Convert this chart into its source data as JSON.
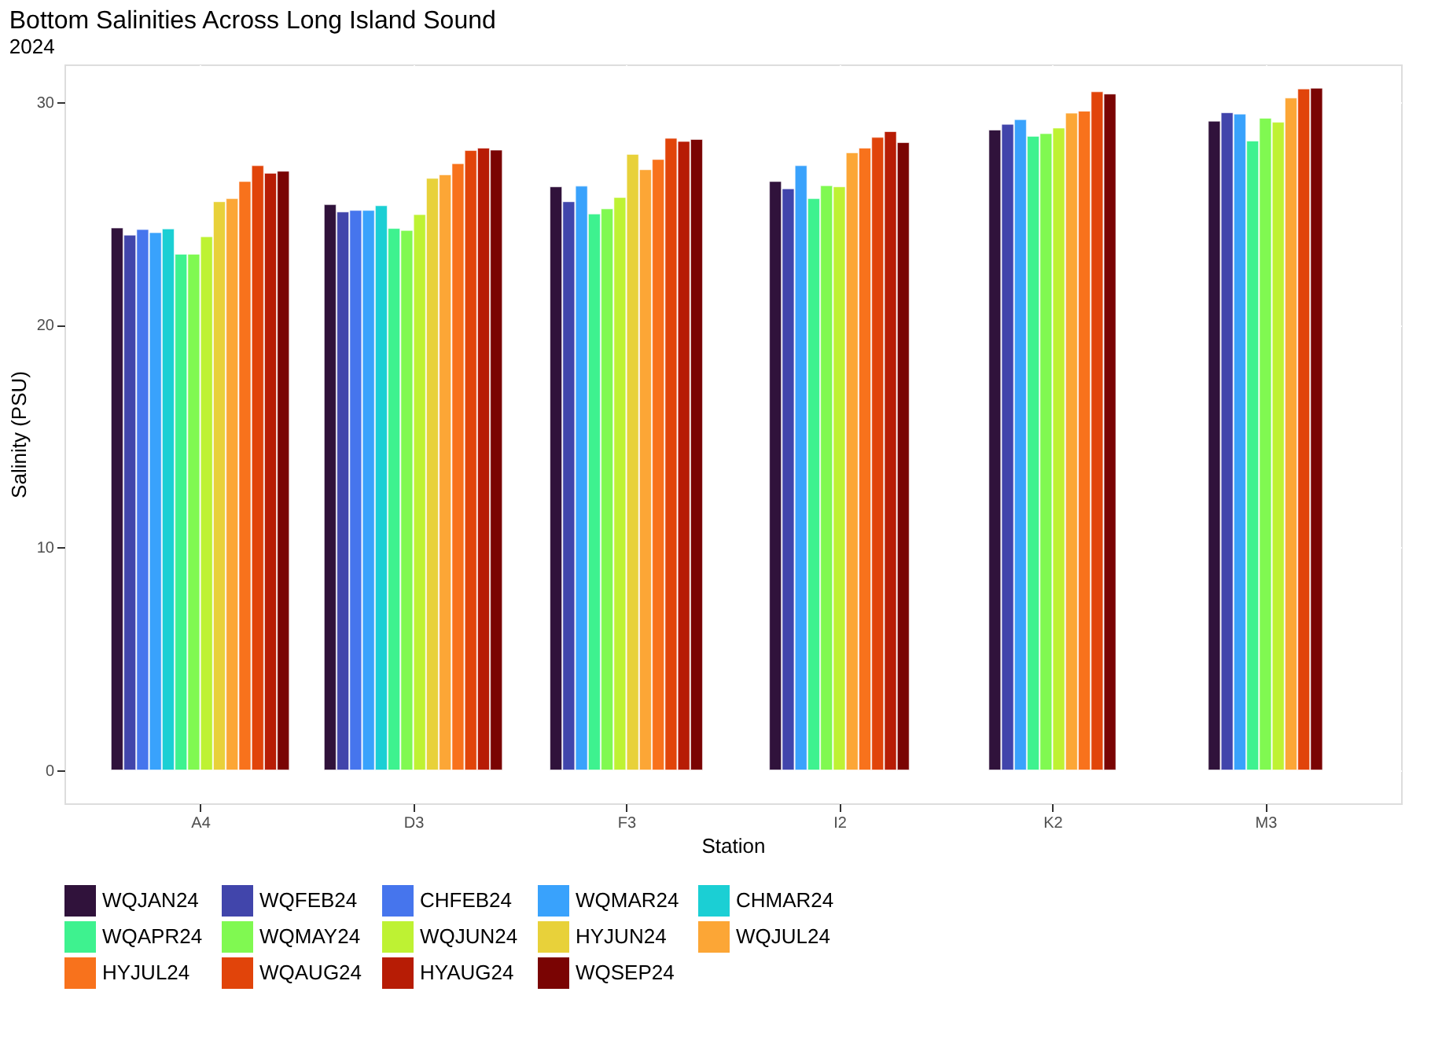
{
  "chart_data": {
    "type": "bar",
    "title": "Bottom Salinities Across Long Island Sound",
    "subtitle": "2024",
    "xlabel": "Station",
    "ylabel": "Salinity (PSU)",
    "categories": [
      "A4",
      "D3",
      "F3",
      "I2",
      "K2",
      "M3"
    ],
    "ylim": [
      -1.5,
      31.7
    ],
    "yticks": [
      0,
      10,
      20,
      30
    ],
    "grid": true,
    "legend": "bottom",
    "series": [
      {
        "name": "WQJAN24",
        "color": "#30123b",
        "values": [
          24.35,
          25.4,
          26.2,
          26.44,
          28.75,
          29.15
        ]
      },
      {
        "name": "WQFEB24",
        "color": "#4145ab",
        "values": [
          24.03,
          25.07,
          25.53,
          26.11,
          29.01,
          29.53
        ]
      },
      {
        "name": "CHFEB24",
        "color": "#4675ed",
        "values": [
          24.28,
          25.14,
          null,
          null,
          null,
          null
        ]
      },
      {
        "name": "WQMAR24",
        "color": "#39a2fc",
        "values": [
          24.14,
          25.14,
          26.23,
          27.15,
          29.22,
          29.47
        ]
      },
      {
        "name": "CHMAR24",
        "color": "#1bcfd4",
        "values": [
          24.31,
          25.35,
          null,
          null,
          null,
          null
        ]
      },
      {
        "name": "WQAPR24",
        "color": "#3ef28f",
        "values": [
          23.17,
          24.33,
          24.98,
          25.67,
          28.47,
          28.26
        ]
      },
      {
        "name": "WQMAY24",
        "color": "#80f951",
        "values": [
          23.17,
          24.24,
          25.21,
          26.25,
          28.59,
          29.28
        ]
      },
      {
        "name": "WQJUN24",
        "color": "#bef233",
        "values": [
          23.96,
          24.95,
          25.72,
          26.2,
          28.84,
          29.1
        ]
      },
      {
        "name": "HYJUN24",
        "color": "#e8d13a",
        "values": [
          25.53,
          26.58,
          27.66,
          null,
          null,
          null
        ]
      },
      {
        "name": "WQJUL24",
        "color": "#fca636",
        "values": [
          25.67,
          26.74,
          26.97,
          27.73,
          29.51,
          30.19
        ]
      },
      {
        "name": "HYJUL24",
        "color": "#f8721c",
        "values": [
          26.44,
          27.24,
          27.43,
          27.94,
          29.6,
          null
        ]
      },
      {
        "name": "WQAUG24",
        "color": "#e1440a",
        "values": [
          27.15,
          27.83,
          28.38,
          28.42,
          30.47,
          30.6
        ]
      },
      {
        "name": "HYAUG24",
        "color": "#b71c05",
        "values": [
          26.81,
          27.94,
          28.24,
          28.68,
          null,
          null
        ]
      },
      {
        "name": "WQSEP24",
        "color": "#7a0403",
        "values": [
          26.9,
          27.85,
          28.33,
          28.19,
          30.37,
          30.63
        ]
      }
    ]
  }
}
